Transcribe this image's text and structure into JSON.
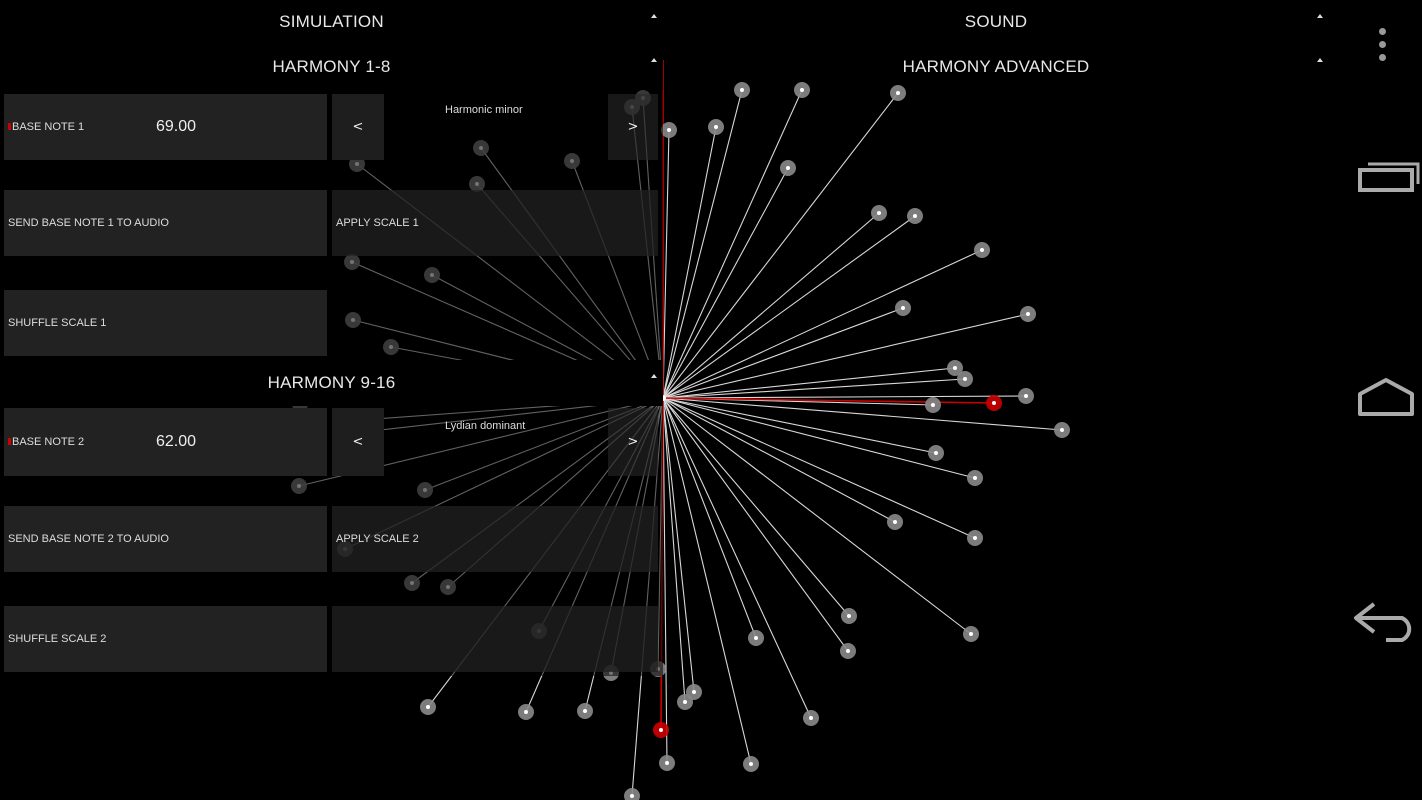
{
  "tabs": {
    "simulation": "SIMULATION",
    "sound": "SOUND",
    "harmony_1_8": "HARMONY 1-8",
    "harmony_advanced": "HARMONY ADVANCED",
    "harmony_9_16": "HARMONY 9-16"
  },
  "group1": {
    "base_note_label": "BASE NOTE 1",
    "base_note_value": "69.00",
    "prev": "<",
    "next": ">",
    "scale_name": "Harmonic minor",
    "send_label": "SEND BASE NOTE 1 TO AUDIO",
    "apply_label": "APPLY SCALE 1",
    "shuffle_label": "SHUFFLE SCALE 1"
  },
  "group2": {
    "base_note_label": "BASE NOTE 2",
    "base_note_value": "62.00",
    "prev": "<",
    "next": ">",
    "scale_name": "Lydian dominant",
    "send_label": "SEND BASE NOTE 2 TO AUDIO",
    "apply_label": "APPLY SCALE 2",
    "shuffle_label": "SHUFFLE SCALE 2"
  },
  "colors": {
    "background": "#000000",
    "panel": "#222222",
    "line": "#d8d8d8",
    "node": "#8a8a8a",
    "accent_red": "#cc0000"
  },
  "nav": {
    "overflow_icon": "overflow-menu-icon",
    "recents_icon": "recent-apps-icon",
    "home_icon": "home-icon",
    "back_icon": "back-icon"
  }
}
